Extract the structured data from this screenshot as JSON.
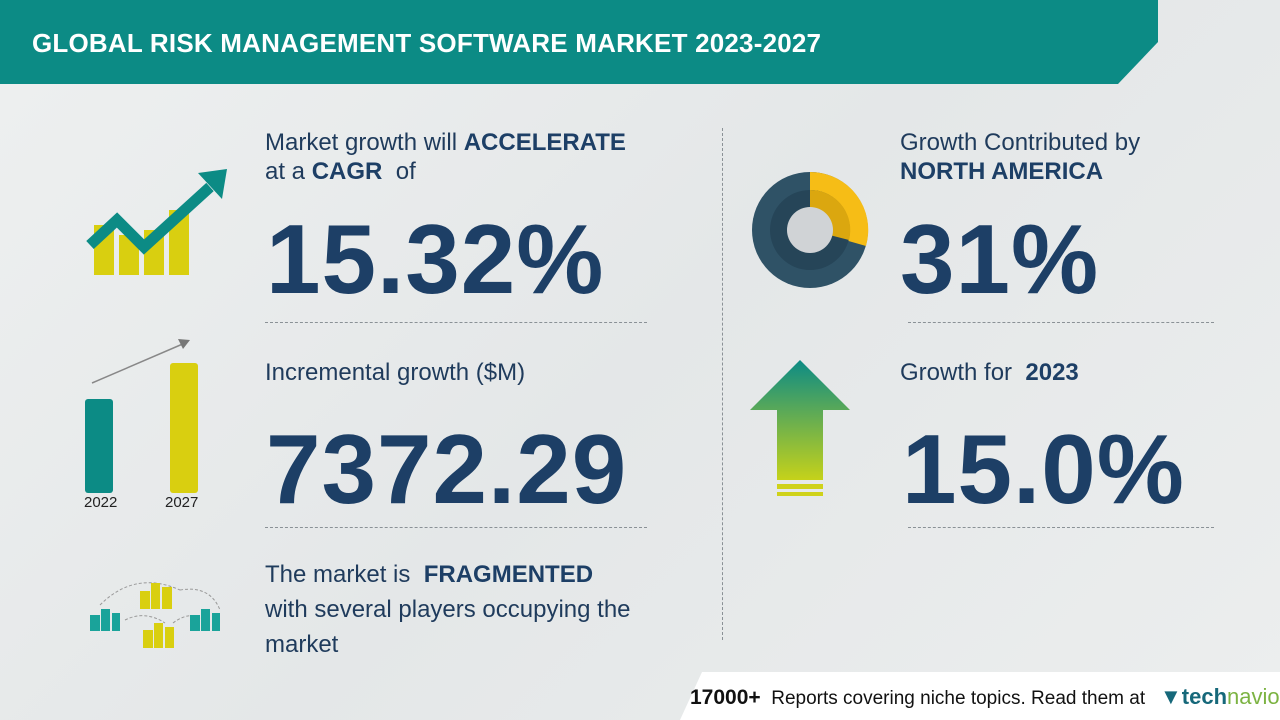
{
  "header": {
    "title": "GLOBAL RISK MANAGEMENT SOFTWARE MARKET 2023-2027"
  },
  "cagr": {
    "line1_prefix": "Market growth will",
    "line1_emph": "ACCELERATE",
    "line2_prefix": "at a",
    "line2_emph": "CAGR",
    "line2_suffix": "of",
    "value": "15.32%"
  },
  "incremental": {
    "label": "Incremental growth ($M)",
    "value": "7372.29",
    "bar_years": [
      "2022",
      "2027"
    ]
  },
  "market": {
    "line1_prefix": "The market is",
    "line1_emph": "FRAGMENTED",
    "line2": "with several players occupying the",
    "line3": "market"
  },
  "region": {
    "line1": "Growth Contributed by",
    "line2": "NORTH AMERICA",
    "value": "31%",
    "share_percent": 31
  },
  "growth_year": {
    "prefix": "Growth for",
    "year": "2023",
    "value": "15.0%"
  },
  "footer": {
    "count": "17000+",
    "text": "Reports covering niche topics. Read them at",
    "brand_a": "tech",
    "brand_b": "navio"
  },
  "colors": {
    "teal": "#0c8b85",
    "navy": "#1d3f66",
    "yellow": "#d9cf10",
    "gold": "#f6bd16",
    "slate": "#2f5266"
  }
}
